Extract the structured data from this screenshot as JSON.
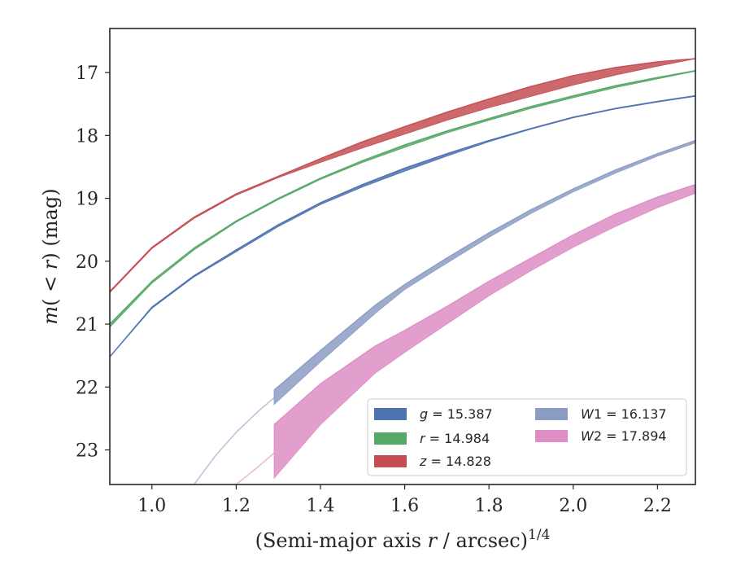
{
  "chart_data": {
    "type": "line",
    "title": "",
    "xlabel": "(Semi-major axis r / arcsec)",
    "xlabel_parts": {
      "prefix": "(Semi-major axis ",
      "var": "r",
      "suffix": " / arcsec)",
      "sup": "1/4"
    },
    "ylabel": "m(<r) (mag)",
    "ylabel_parts": {
      "m": "m",
      "open": "(",
      "lt": "<",
      "r": "r",
      "close": ")",
      "unit": " (mag)"
    },
    "xlim": [
      0.9,
      2.29
    ],
    "ylim": [
      23.55,
      16.3
    ],
    "y_inverted": true,
    "xticks": [
      1.0,
      1.2,
      1.4,
      1.6,
      1.8,
      2.0,
      2.2
    ],
    "xtick_labels": [
      "1.0",
      "1.2",
      "1.4",
      "1.6",
      "1.8",
      "2.0",
      "2.2"
    ],
    "yticks": [
      17,
      18,
      19,
      20,
      21,
      22,
      23
    ],
    "ytick_labels": [
      "17",
      "18",
      "19",
      "20",
      "21",
      "22",
      "23"
    ],
    "grid": false,
    "legend_position": "lower-right",
    "legend_columns": 2,
    "series": [
      {
        "key": "g",
        "name": "g = 15.387",
        "legend_var": "g",
        "legend_val": " = 15.387",
        "color": "#4c72b0",
        "x": [
          0.9,
          1.0,
          1.1,
          1.2,
          1.3,
          1.4,
          1.5,
          1.6,
          1.7,
          1.8,
          1.9,
          2.0,
          2.1,
          2.2,
          2.29
        ],
        "y_low": [
          21.52,
          20.75,
          20.25,
          19.85,
          19.45,
          19.1,
          18.82,
          18.57,
          18.33,
          18.1,
          17.9,
          17.72,
          17.58,
          17.47,
          17.38
        ],
        "y_high": [
          21.52,
          20.73,
          20.23,
          19.82,
          19.42,
          19.07,
          18.78,
          18.52,
          18.29,
          18.08,
          17.89,
          17.71,
          17.57,
          17.46,
          17.37
        ],
        "ext_x": [],
        "ext_y": []
      },
      {
        "key": "r",
        "name": "r = 14.984",
        "legend_var": "r",
        "legend_val": " = 14.984",
        "color": "#55a868",
        "x": [
          0.9,
          1.0,
          1.1,
          1.2,
          1.3,
          1.4,
          1.5,
          1.6,
          1.7,
          1.8,
          1.9,
          2.0,
          2.1,
          2.2,
          2.29
        ],
        "y_low": [
          21.05,
          20.35,
          19.82,
          19.38,
          19.02,
          18.7,
          18.43,
          18.19,
          17.96,
          17.76,
          17.57,
          17.4,
          17.24,
          17.1,
          16.98
        ],
        "y_high": [
          21.0,
          20.32,
          19.79,
          19.36,
          19.0,
          18.68,
          18.4,
          18.15,
          17.93,
          17.73,
          17.54,
          17.37,
          17.21,
          17.08,
          16.97
        ],
        "ext_x": [],
        "ext_y": []
      },
      {
        "key": "z",
        "name": "z = 14.828",
        "legend_var": "z",
        "legend_val": " = 14.828",
        "color": "#c44e52",
        "x": [
          0.9,
          1.0,
          1.1,
          1.2,
          1.3,
          1.4,
          1.5,
          1.6,
          1.7,
          1.8,
          1.9,
          2.0,
          2.1,
          2.2,
          2.29
        ],
        "y_low": [
          20.5,
          19.8,
          19.32,
          18.95,
          18.67,
          18.43,
          18.2,
          17.98,
          17.76,
          17.56,
          17.38,
          17.2,
          17.04,
          16.9,
          16.78
        ],
        "y_high": [
          20.48,
          19.78,
          19.3,
          18.93,
          18.65,
          18.37,
          18.1,
          17.86,
          17.63,
          17.42,
          17.22,
          17.05,
          16.92,
          16.83,
          16.78
        ],
        "ext_x": [],
        "ext_y": []
      },
      {
        "key": "W1",
        "name": "W1 = 16.137",
        "legend_var": "W",
        "legend_val": "1 = 16.137",
        "color": "#8c9dc4",
        "x": [
          1.29,
          1.4,
          1.53,
          1.6,
          1.7,
          1.8,
          1.9,
          2.0,
          2.1,
          2.2,
          2.29
        ],
        "y_low": [
          22.28,
          21.6,
          20.83,
          20.45,
          20.03,
          19.62,
          19.24,
          18.9,
          18.6,
          18.33,
          18.12
        ],
        "y_high": [
          22.05,
          21.42,
          20.7,
          20.37,
          19.95,
          19.55,
          19.18,
          18.85,
          18.55,
          18.29,
          18.08
        ],
        "ext_x": [
          1.1,
          1.15,
          1.2,
          1.25,
          1.29
        ],
        "ext_y": [
          23.55,
          23.1,
          22.72,
          22.4,
          22.17
        ]
      },
      {
        "key": "W2",
        "name": "W2 = 17.894",
        "legend_var": "W",
        "legend_val": "2 = 17.894",
        "color": "#dd8ec5",
        "x": [
          1.29,
          1.4,
          1.53,
          1.6,
          1.7,
          1.8,
          1.9,
          2.0,
          2.1,
          2.2,
          2.29
        ],
        "y_low": [
          23.45,
          22.6,
          21.78,
          21.45,
          21.0,
          20.55,
          20.15,
          19.78,
          19.45,
          19.15,
          18.92
        ],
        "y_high": [
          22.6,
          21.95,
          21.35,
          21.1,
          20.72,
          20.32,
          19.95,
          19.58,
          19.25,
          18.98,
          18.78
        ],
        "ext_x": [
          1.2,
          1.25,
          1.29
        ],
        "ext_y": [
          23.55,
          23.28,
          23.05
        ]
      }
    ]
  }
}
